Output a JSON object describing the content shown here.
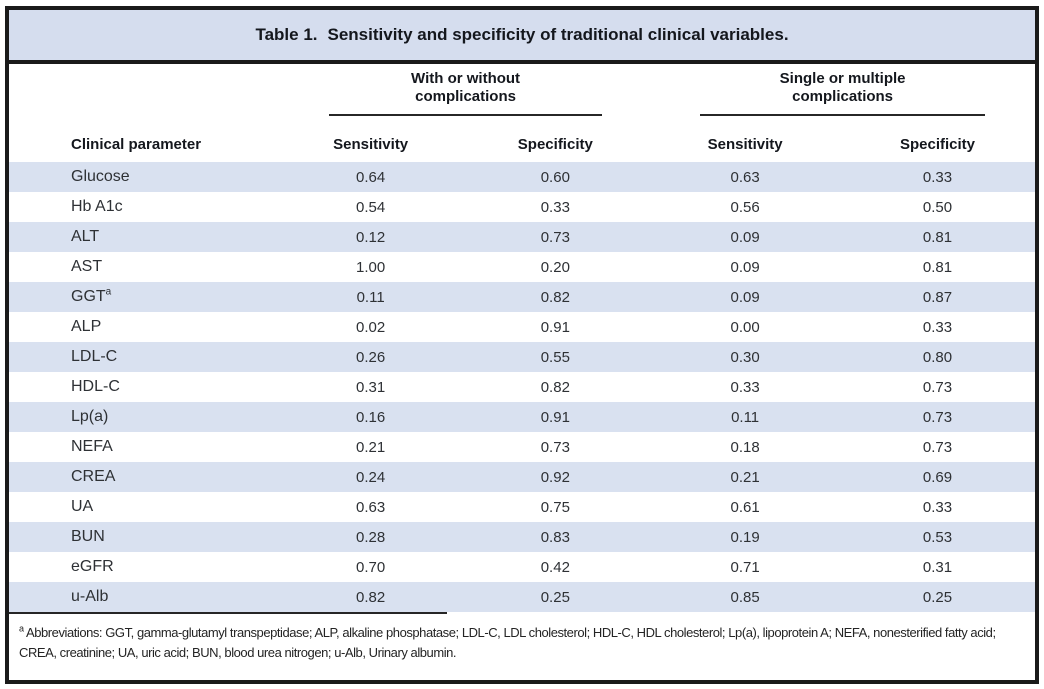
{
  "title": {
    "label": "Table 1.",
    "text": "Sensitivity and specificity of traditional clinical variables."
  },
  "table": {
    "group_headers": [
      "With or without complications",
      "Single or multiple complications"
    ],
    "columns": {
      "parameter": "Clinical parameter",
      "sensitivity": "Sensitivity",
      "specificity": "Specificity"
    },
    "rows": [
      {
        "parameter": "Glucose",
        "values": [
          "0.64",
          "0.60",
          "0.63",
          "0.33"
        ]
      },
      {
        "parameter": "Hb A1c",
        "values": [
          "0.54",
          "0.33",
          "0.56",
          "0.50"
        ]
      },
      {
        "parameter": "ALT",
        "values": [
          "0.12",
          "0.73",
          "0.09",
          "0.81"
        ]
      },
      {
        "parameter": "AST",
        "values": [
          "1.00",
          "0.20",
          "0.09",
          "0.81"
        ]
      },
      {
        "parameter": "GGT",
        "sup": "a",
        "values": [
          "0.11",
          "0.82",
          "0.09",
          "0.87"
        ]
      },
      {
        "parameter": "ALP",
        "values": [
          "0.02",
          "0.91",
          "0.00",
          "0.33"
        ]
      },
      {
        "parameter": "LDL-C",
        "values": [
          "0.26",
          "0.55",
          "0.30",
          "0.80"
        ]
      },
      {
        "parameter": "HDL-C",
        "values": [
          "0.31",
          "0.82",
          "0.33",
          "0.73"
        ]
      },
      {
        "parameter": "Lp(a)",
        "values": [
          "0.16",
          "0.91",
          "0.11",
          "0.73"
        ]
      },
      {
        "parameter": "NEFA",
        "values": [
          "0.21",
          "0.73",
          "0.18",
          "0.73"
        ]
      },
      {
        "parameter": "CREA",
        "values": [
          "0.24",
          "0.92",
          "0.21",
          "0.69"
        ]
      },
      {
        "parameter": "UA",
        "values": [
          "0.63",
          "0.75",
          "0.61",
          "0.33"
        ]
      },
      {
        "parameter": "BUN",
        "values": [
          "0.28",
          "0.83",
          "0.19",
          "0.53"
        ]
      },
      {
        "parameter": "eGFR",
        "values": [
          "0.70",
          "0.42",
          "0.71",
          "0.31"
        ]
      },
      {
        "parameter": "u-Alb",
        "values": [
          "0.82",
          "0.25",
          "0.85",
          "0.25"
        ]
      }
    ]
  },
  "footnote": {
    "marker": "a",
    "line1": "Abbreviations: GGT, gamma-glutamyl transpeptidase; ALP, alkaline phosphatase; LDL-C, LDL cholesterol; HDL-C, HDL cholesterol; Lp(a), lipoprotein A; NEFA, nonesterified fatty acid;",
    "line2": "CREA, creatinine; UA, uric acid; BUN, blood urea nitrogen; u-Alb, Urinary albumin."
  },
  "colors": {
    "band": "#d5ddee",
    "row_stripe": "#d9e1f0",
    "border": "#1a1a1a"
  }
}
